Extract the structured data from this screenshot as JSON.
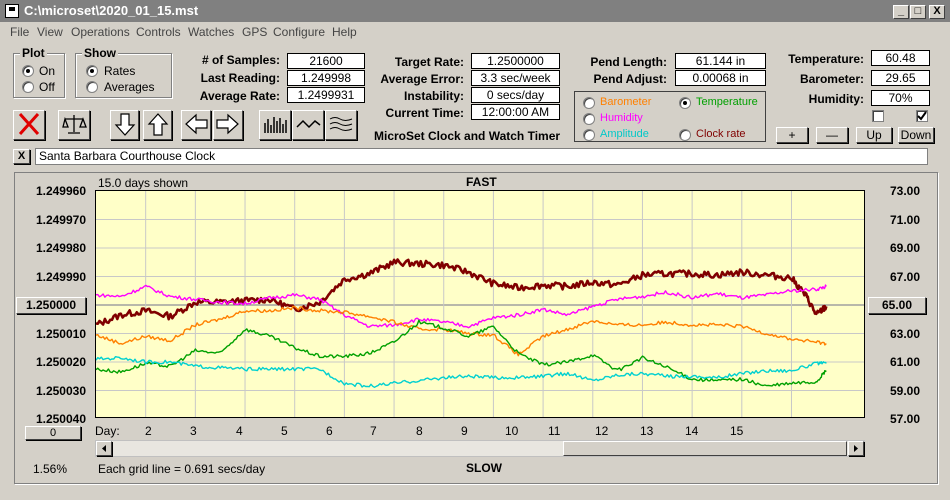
{
  "window": {
    "title": "C:\\microset\\2020_01_15.mst",
    "min_glyph": "_",
    "max_glyph": "□",
    "close_glyph": "X"
  },
  "menu": [
    "File",
    "View",
    "Operations",
    "Controls",
    "Watches",
    "GPS",
    "Configure",
    "Help"
  ],
  "plot_group": {
    "label": "Plot",
    "on": "On",
    "off": "Off",
    "selected": "On"
  },
  "show_group": {
    "label": "Show",
    "rates": "Rates",
    "averages": "Averages",
    "selected": "Rates"
  },
  "stats": {
    "samples_label": "# of Samples:",
    "samples": "21600",
    "last_label": "Last Reading:",
    "last": "1.249998",
    "avg_rate_label": "Average Rate:",
    "avg_rate": "1.2499931",
    "target_label": "Target Rate:",
    "target": "1.2500000",
    "avg_err_label": "Average Error:",
    "avg_err": "3.3 sec/week",
    "instab_label": "Instability:",
    "instab": "0 secs/day",
    "time_label": "Current Time:",
    "time": "12:00:00 AM",
    "pend_len_label": "Pend Length:",
    "pend_len": "61.144 in",
    "pend_adj_label": "Pend Adjust:",
    "pend_adj": "0.00068 in",
    "temp_label": "Temperature:",
    "temp": "60.48",
    "baro_label": "Barometer:",
    "baro": "29.65",
    "hum_label": "Humidity:",
    "hum": "70%"
  },
  "app_caption": "MicroSet Clock and Watch Timer",
  "sensor_options": {
    "barometer": "Barometer",
    "temperature": "Temperature",
    "humidity": "Humidity",
    "amplitude": "Amplitude",
    "clock_rate": "Clock rate",
    "selected": "Temperature"
  },
  "colors": {
    "barometer": "#ff8000",
    "temperature": "#00a000",
    "humidity": "#ff00ff",
    "amplitude": "#00d0d0",
    "clock_rate": "#800000"
  },
  "adjust_buttons": [
    "+",
    "—",
    "Up",
    "Down"
  ],
  "clock_name": "Santa Barbara Courthouse Clock",
  "clear_glyph": "X",
  "chart": {
    "days_shown": "15.0 days shown",
    "top_label": "FAST",
    "bottom_label": "SLOW",
    "grid_note": "Each grid line = 0.691 secs/day",
    "left_value_btn": "1.250000",
    "right_value_btn": "65.00",
    "zero_btn": "0",
    "percent": "1.56%",
    "day_label": "Day:"
  },
  "chart_data": {
    "type": "line",
    "y_left_ticks": [
      "1.249960",
      "1.249970",
      "1.249980",
      "1.249990",
      "1.250000",
      "1.250010",
      "1.250020",
      "1.250030",
      "1.250040"
    ],
    "y_right_ticks": [
      "73.00",
      "71.00",
      "69.00",
      "67.00",
      "65.00",
      "63.00",
      "61.00",
      "59.00",
      "57.00"
    ],
    "x_ticks": [
      "2",
      "3",
      "4",
      "5",
      "6",
      "7",
      "8",
      "9",
      "10",
      "11",
      "12",
      "13",
      "14",
      "15"
    ],
    "ylim_left": [
      1.24996,
      1.25004
    ],
    "ylim_right": [
      57,
      73
    ],
    "xlim": [
      1,
      16.5
    ],
    "series": [
      {
        "name": "Clock rate",
        "color": "#800000",
        "x": [
          1,
          1.5,
          2,
          2.5,
          3,
          3.5,
          4,
          4.5,
          5,
          5.5,
          6,
          6.5,
          7,
          7.5,
          8,
          8.5,
          9,
          9.5,
          10,
          10.5,
          11,
          11.5,
          12,
          12.5,
          13,
          13.5,
          14,
          14.5,
          15,
          15.3,
          15.5,
          15.7
        ],
        "y": [
          63.6,
          64.3,
          64.6,
          64.2,
          65.2,
          65.2,
          65.3,
          65.4,
          64.7,
          65.2,
          66.8,
          67.2,
          68.0,
          67.9,
          67.8,
          67.3,
          66.5,
          66.2,
          66.4,
          66.3,
          66.6,
          66.4,
          67.1,
          67.2,
          67.2,
          67.1,
          67.3,
          67.1,
          66.9,
          65.6,
          64.3,
          64.9
        ]
      },
      {
        "name": "Humidity",
        "color": "#ff00ff",
        "x": [
          1,
          1.5,
          2,
          2.5,
          3,
          3.5,
          4,
          4.5,
          5,
          5.5,
          6,
          6.5,
          7,
          7.5,
          8,
          8.5,
          9,
          9.5,
          10,
          10.5,
          11,
          11.5,
          12,
          12.5,
          13,
          13.5,
          14,
          14.5,
          15,
          15.5,
          15.7
        ],
        "y": [
          65.7,
          65.6,
          66.3,
          65.6,
          65.4,
          65.2,
          65.1,
          65.5,
          65.7,
          65.4,
          64.3,
          63.5,
          63.6,
          64.0,
          63.8,
          63.5,
          64.1,
          64.3,
          64.7,
          64.3,
          64.9,
          65.4,
          65.6,
          65.9,
          65.5,
          65.8,
          65.5,
          65.7,
          66.0,
          66.1,
          66.3
        ]
      },
      {
        "name": "Barometer",
        "color": "#ff8000",
        "x": [
          1,
          1.5,
          2,
          2.5,
          3,
          3.5,
          4,
          4.5,
          5,
          5.5,
          6,
          6.5,
          7,
          7.5,
          8,
          8.5,
          9,
          9.5,
          10,
          10.5,
          11,
          11.5,
          12,
          12.5,
          13,
          13.5,
          14,
          14.5,
          15,
          15.5,
          15.7
        ],
        "y": [
          62.9,
          62.3,
          62.8,
          62.5,
          63.6,
          64.0,
          64.6,
          64.6,
          64.8,
          64.6,
          64.5,
          64.2,
          63.8,
          63.3,
          63.3,
          63.0,
          62.9,
          61.5,
          62.8,
          63.3,
          63.9,
          63.6,
          63.6,
          63.8,
          63.6,
          63.6,
          63.5,
          63.0,
          62.6,
          62.4,
          62.3
        ]
      },
      {
        "name": "Temperature",
        "color": "#00a000",
        "x": [
          1,
          1.5,
          2,
          2.5,
          3,
          3.5,
          4,
          4.5,
          5,
          5.5,
          6,
          6.5,
          7,
          7.5,
          8,
          8.5,
          9,
          9.5,
          10,
          10.5,
          11,
          11.5,
          12,
          12.5,
          13,
          13.5,
          14,
          14.5,
          15,
          15.5,
          15.7
        ],
        "y": [
          60.5,
          60.3,
          60.9,
          60.7,
          61.8,
          61.6,
          63.3,
          62.8,
          62.0,
          61.4,
          61.4,
          61.6,
          62.4,
          63.8,
          63.4,
          62.8,
          63.5,
          61.6,
          60.8,
          61.0,
          61.5,
          60.4,
          61.3,
          60.6,
          59.8,
          59.7,
          59.8,
          59.3,
          59.5,
          59.6,
          60.4
        ]
      },
      {
        "name": "Amplitude",
        "color": "#00d0d0",
        "x": [
          1,
          1.5,
          2,
          2.5,
          3,
          3.5,
          4,
          4.5,
          5,
          5.5,
          6,
          6.5,
          7,
          7.5,
          8,
          8.5,
          9,
          9.5,
          10,
          10.5,
          11,
          11.5,
          12,
          12.5,
          13,
          13.5,
          14,
          14.5,
          15,
          15.5,
          15.7
        ],
        "y": [
          61.2,
          61.3,
          61.0,
          61.0,
          60.7,
          60.6,
          60.5,
          60.5,
          60.5,
          60.5,
          59.5,
          59.3,
          59.5,
          59.7,
          59.9,
          60.0,
          59.9,
          59.9,
          60.0,
          60.2,
          59.7,
          60.1,
          60.2,
          60.0,
          60.0,
          59.9,
          60.2,
          60.4,
          60.4,
          60.9,
          60.9
        ]
      }
    ]
  }
}
